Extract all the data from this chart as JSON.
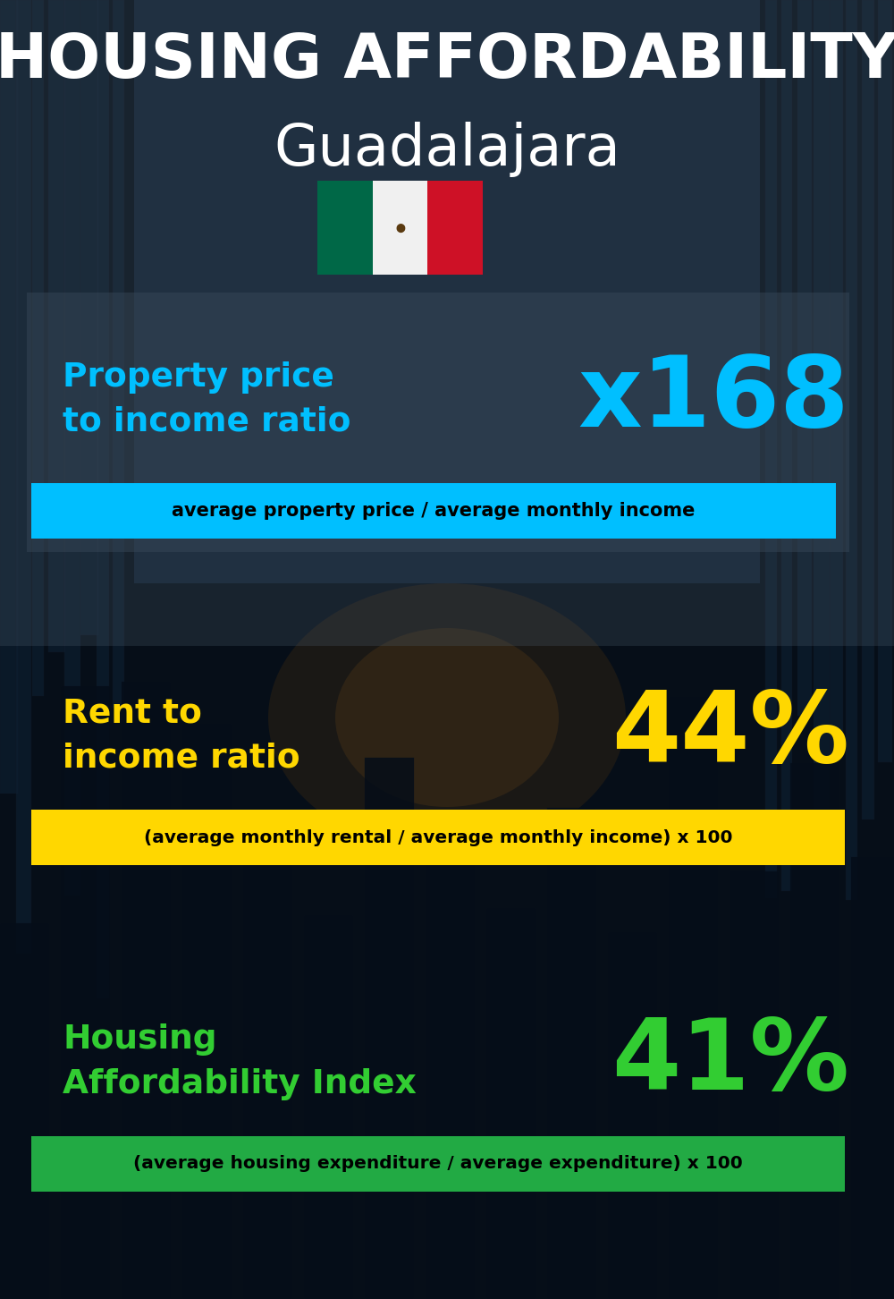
{
  "title_line1": "HOUSING AFFORDABILITY",
  "title_line2": "Guadalajara",
  "bg_color": "#0a1628",
  "section1_label": "Property price\nto income ratio",
  "section1_value": "x168",
  "section1_label_color": "#00bfff",
  "section1_value_color": "#00bfff",
  "section1_box_color": "#00bfff",
  "section1_box_text": "average property price / average monthly income",
  "section2_label": "Rent to\nincome ratio",
  "section2_value": "44%",
  "section2_label_color": "#ffd700",
  "section2_value_color": "#ffd700",
  "section2_box_color": "#ffd700",
  "section2_box_text": "(average monthly rental / average monthly income) x 100",
  "section3_label": "Housing\nAffordability Index",
  "section3_value": "41%",
  "section3_label_color": "#32cd32",
  "section3_value_color": "#32cd32",
  "section3_box_color": "#22aa44",
  "section3_box_text": "(average housing expenditure / average expenditure) x 100",
  "title_color": "#ffffff",
  "box_text_color": "#000000",
  "overlay_color": "#3a4a5a",
  "overlay_alpha": 0.55
}
